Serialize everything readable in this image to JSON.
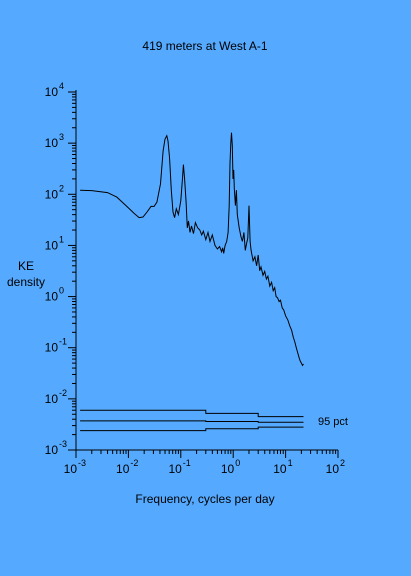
{
  "chart_data": {
    "type": "line",
    "title": "419 meters at West A-1",
    "xlabel": "Frequency, cycles per day",
    "ylabel_line1": "KE",
    "ylabel_line2": "density",
    "x_scale": "log",
    "y_scale": "log",
    "xlim": [
      0.001,
      100
    ],
    "ylim": [
      0.001,
      10000
    ],
    "x_ticks": [
      {
        "base": "10",
        "exp": "-3",
        "value": 0.001
      },
      {
        "base": "10",
        "exp": "-2",
        "value": 0.01
      },
      {
        "base": "10",
        "exp": "-1",
        "value": 0.1
      },
      {
        "base": "10",
        "exp": "0",
        "value": 1
      },
      {
        "base": "10",
        "exp": "1",
        "value": 10
      },
      {
        "base": "10",
        "exp": "2",
        "value": 100
      }
    ],
    "y_ticks": [
      {
        "base": "10",
        "exp": "-3",
        "value": 0.001
      },
      {
        "base": "10",
        "exp": "-2",
        "value": 0.01
      },
      {
        "base": "10",
        "exp": "-1",
        "value": 0.1
      },
      {
        "base": "10",
        "exp": "0",
        "value": 1
      },
      {
        "base": "10",
        "exp": "1",
        "value": 10
      },
      {
        "base": "10",
        "exp": "2",
        "value": 100
      },
      {
        "base": "10",
        "exp": "3",
        "value": 1000
      },
      {
        "base": "10",
        "exp": "4",
        "value": 10000
      }
    ],
    "grid": false,
    "series": [
      {
        "values_xy": [
          [
            0.0012,
            120
          ],
          [
            0.002,
            118
          ],
          [
            0.004,
            108
          ],
          [
            0.006,
            88
          ],
          [
            0.009,
            60
          ],
          [
            0.013,
            42
          ],
          [
            0.016,
            35
          ],
          [
            0.019,
            36
          ],
          [
            0.023,
            46
          ],
          [
            0.027,
            58
          ],
          [
            0.031,
            58
          ],
          [
            0.035,
            70
          ],
          [
            0.041,
            160
          ],
          [
            0.046,
            700
          ],
          [
            0.05,
            1200
          ],
          [
            0.054,
            1400
          ],
          [
            0.057,
            1100
          ],
          [
            0.061,
            500
          ],
          [
            0.066,
            120
          ],
          [
            0.071,
            45
          ],
          [
            0.076,
            35
          ],
          [
            0.082,
            52
          ],
          [
            0.09,
            40
          ],
          [
            0.1,
            75
          ],
          [
            0.108,
            220
          ],
          [
            0.112,
            380
          ],
          [
            0.118,
            200
          ],
          [
            0.126,
            70
          ],
          [
            0.133,
            22
          ],
          [
            0.14,
            30
          ],
          [
            0.15,
            18
          ],
          [
            0.16,
            24
          ],
          [
            0.175,
            17
          ],
          [
            0.19,
            28
          ],
          [
            0.21,
            22
          ],
          [
            0.23,
            20
          ],
          [
            0.25,
            16
          ],
          [
            0.27,
            19
          ],
          [
            0.3,
            13
          ],
          [
            0.33,
            18
          ],
          [
            0.36,
            12
          ],
          [
            0.4,
            16
          ],
          [
            0.45,
            10
          ],
          [
            0.5,
            8.5
          ],
          [
            0.55,
            9.5
          ],
          [
            0.6,
            7.5
          ],
          [
            0.63,
            9
          ],
          [
            0.66,
            7
          ],
          [
            0.7,
            10
          ],
          [
            0.75,
            12
          ],
          [
            0.8,
            18
          ],
          [
            0.84,
            60
          ],
          [
            0.87,
            400
          ],
          [
            0.9,
            1000
          ],
          [
            0.93,
            1600
          ],
          [
            0.96,
            900
          ],
          [
            0.99,
            200
          ],
          [
            1.02,
            300
          ],
          [
            1.05,
            130
          ],
          [
            1.1,
            60
          ],
          [
            1.15,
            120
          ],
          [
            1.2,
            40
          ],
          [
            1.3,
            22
          ],
          [
            1.4,
            15
          ],
          [
            1.5,
            12
          ],
          [
            1.6,
            18
          ],
          [
            1.7,
            8
          ],
          [
            1.8,
            11
          ],
          [
            1.9,
            14
          ],
          [
            2.0,
            60
          ],
          [
            2.1,
            12
          ],
          [
            2.2,
            8
          ],
          [
            2.4,
            5
          ],
          [
            2.6,
            6
          ],
          [
            2.8,
            4
          ],
          [
            3.0,
            6.5
          ],
          [
            3.2,
            3.2
          ],
          [
            3.4,
            3.8
          ],
          [
            3.7,
            2.6
          ],
          [
            4.0,
            3.1
          ],
          [
            4.3,
            2.2
          ],
          [
            4.6,
            2.5
          ],
          [
            5.0,
            1.6
          ],
          [
            5.4,
            1.9
          ],
          [
            5.8,
            1.3
          ],
          [
            6.2,
            1.5
          ],
          [
            6.6,
            1.0
          ],
          [
            7.0,
            0.95
          ],
          [
            7.5,
            0.8
          ],
          [
            8.0,
            0.85
          ],
          [
            8.6,
            0.6
          ],
          [
            9.2,
            0.55
          ],
          [
            10.0,
            0.42
          ],
          [
            11.0,
            0.35
          ],
          [
            12.0,
            0.27
          ],
          [
            13.0,
            0.22
          ],
          [
            14.0,
            0.16
          ],
          [
            15.0,
            0.13
          ],
          [
            16.0,
            0.1
          ],
          [
            17.0,
            0.08
          ],
          [
            18.0,
            0.065
          ],
          [
            19.0,
            0.055
          ],
          [
            20.0,
            0.05
          ],
          [
            21.0,
            0.045
          ],
          [
            22.0,
            0.048
          ]
        ]
      }
    ],
    "confidence_band": {
      "label": "95 pct",
      "upper": [
        [
          0.0012,
          0.006
        ],
        [
          0.3,
          0.006
        ],
        [
          0.3,
          0.0052
        ],
        [
          3.0,
          0.0052
        ],
        [
          3.0,
          0.0045
        ],
        [
          22.0,
          0.0045
        ]
      ],
      "middle": [
        [
          0.0012,
          0.0037
        ],
        [
          0.3,
          0.0037
        ],
        [
          0.3,
          0.0036
        ],
        [
          3.0,
          0.0036
        ],
        [
          3.0,
          0.0035
        ],
        [
          22.0,
          0.0035
        ]
      ],
      "lower": [
        [
          0.0012,
          0.0024
        ],
        [
          0.3,
          0.0024
        ],
        [
          0.3,
          0.0026
        ],
        [
          3.0,
          0.0026
        ],
        [
          3.0,
          0.0028
        ],
        [
          22.0,
          0.0028
        ]
      ]
    }
  }
}
